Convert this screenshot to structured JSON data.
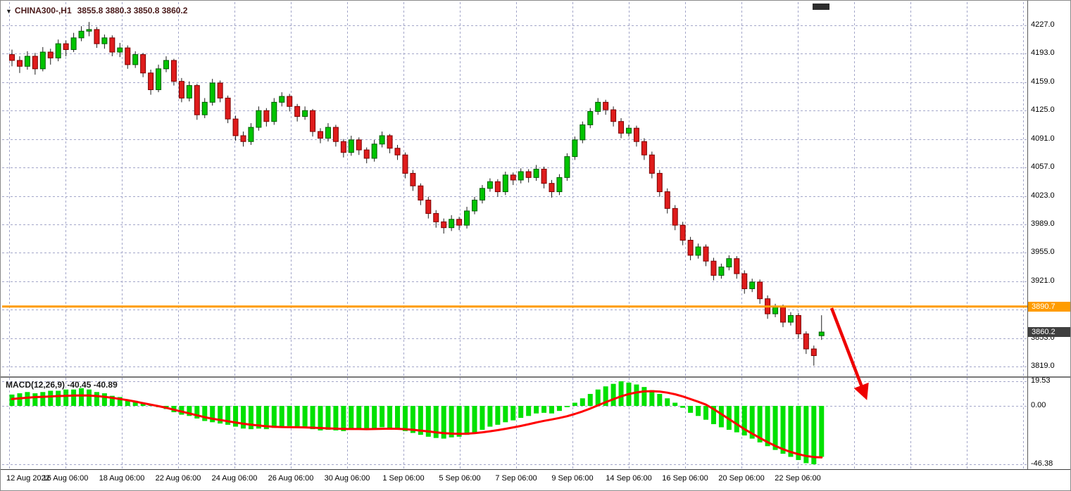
{
  "header": {
    "dropdown_icon": "▼",
    "symbol_period": "CHINA300-,H1",
    "ohlc": "3855.8 3880.3 3850.8 3860.2"
  },
  "badges": {
    "orange_line": "3890.7",
    "current_price": "3860.2"
  },
  "indicator": {
    "label": "MACD(12,26,9) -40.45 -40.89"
  },
  "price_axis": {
    "ticks": [
      "4227.0",
      "4193.0",
      "4159.0",
      "4125.0",
      "4091.0",
      "4057.0",
      "4023.0",
      "3989.0",
      "3955.0",
      "3921.0",
      "3887.0",
      "3853.0",
      "3819.0"
    ]
  },
  "macd_axis": {
    "ticks": [
      "19.53",
      "0.00",
      "-46.38"
    ]
  },
  "time_axis": {
    "labels": [
      "12 Aug 2022",
      "16 Aug 06:00",
      "18 Aug 06:00",
      "22 Aug 06:00",
      "24 Aug 06:00",
      "26 Aug 06:00",
      "30 Aug 06:00",
      "1 Sep 06:00",
      "5 Sep 06:00",
      "7 Sep 06:00",
      "9 Sep 06:00",
      "14 Sep 06:00",
      "16 Sep 06:00",
      "20 Sep 06:00",
      "22 Sep 06:00"
    ]
  },
  "colors": {
    "up": "#00c400",
    "down": "#df1c1c",
    "wick": "#1e1e1e",
    "histogram": "#00e100",
    "signal": "#ff0000",
    "grid": "#a3a6c9",
    "orange_line": "#ff9c00",
    "arrow": "#ee0000",
    "badge_dark": "#3f3f3f",
    "title_text": "#4a1a1a"
  },
  "chart_data": [
    {
      "type": "candlestick",
      "title": "CHINA300-,H1",
      "ohlc_current": {
        "open": 3855.8,
        "high": 3880.3,
        "low": 3850.8,
        "close": 3860.2
      },
      "ylim": [
        3810,
        4240
      ],
      "y_ticks": [
        4227.0,
        4193.0,
        4159.0,
        4125.0,
        4091.0,
        4057.0,
        4023.0,
        3989.0,
        3955.0,
        3921.0,
        3887.0,
        3853.0,
        3819.0
      ],
      "x_tick_labels": [
        "12 Aug 2022",
        "16 Aug 06:00",
        "18 Aug 06:00",
        "22 Aug 06:00",
        "24 Aug 06:00",
        "26 Aug 06:00",
        "30 Aug 06:00",
        "1 Sep 06:00",
        "5 Sep 06:00",
        "7 Sep 06:00",
        "9 Sep 06:00",
        "14 Sep 06:00",
        "16 Sep 06:00",
        "20 Sep 06:00",
        "22 Sep 06:00"
      ],
      "horizontal_line": 3890.7,
      "last_price": 3860.2,
      "candles": [
        [
          4192,
          4198,
          4178,
          4185
        ],
        [
          4185,
          4190,
          4170,
          4178
        ],
        [
          4178,
          4196,
          4174,
          4190
        ],
        [
          4190,
          4194,
          4168,
          4175
        ],
        [
          4175,
          4201,
          4172,
          4195
        ],
        [
          4195,
          4199,
          4180,
          4188
        ],
        [
          4188,
          4210,
          4184,
          4205
        ],
        [
          4205,
          4209,
          4190,
          4198
        ],
        [
          4198,
          4218,
          4195,
          4212
        ],
        [
          4212,
          4226,
          4208,
          4220
        ],
        [
          4220,
          4231,
          4214,
          4222
        ],
        [
          4222,
          4225,
          4200,
          4205
        ],
        [
          4205,
          4216,
          4199,
          4212
        ],
        [
          4212,
          4215,
          4190,
          4195
        ],
        [
          4195,
          4206,
          4189,
          4200
        ],
        [
          4200,
          4203,
          4175,
          4180
        ],
        [
          4180,
          4196,
          4176,
          4192
        ],
        [
          4192,
          4194,
          4165,
          4170
        ],
        [
          4170,
          4174,
          4144,
          4150
        ],
        [
          4150,
          4180,
          4147,
          4175
        ],
        [
          4175,
          4190,
          4171,
          4185
        ],
        [
          4185,
          4187,
          4155,
          4160
        ],
        [
          4160,
          4164,
          4135,
          4140
        ],
        [
          4140,
          4160,
          4136,
          4155
        ],
        [
          4155,
          4157,
          4114,
          4120
        ],
        [
          4120,
          4140,
          4116,
          4135
        ],
        [
          4135,
          4163,
          4131,
          4158
        ],
        [
          4158,
          4161,
          4135,
          4140
        ],
        [
          4140,
          4143,
          4110,
          4115
        ],
        [
          4115,
          4119,
          4089,
          4095
        ],
        [
          4095,
          4100,
          4082,
          4088
        ],
        [
          4088,
          4110,
          4084,
          4105
        ],
        [
          4105,
          4130,
          4101,
          4125
        ],
        [
          4125,
          4128,
          4106,
          4112
        ],
        [
          4112,
          4140,
          4108,
          4135
        ],
        [
          4135,
          4147,
          4130,
          4142
        ],
        [
          4142,
          4145,
          4124,
          4130
        ],
        [
          4130,
          4133,
          4112,
          4118
        ],
        [
          4118,
          4130,
          4114,
          4125
        ],
        [
          4125,
          4127,
          4094,
          4100
        ],
        [
          4100,
          4104,
          4086,
          4092
        ],
        [
          4092,
          4110,
          4088,
          4105
        ],
        [
          4105,
          4108,
          4082,
          4088
        ],
        [
          4088,
          4091,
          4069,
          4075
        ],
        [
          4075,
          4095,
          4071,
          4090
        ],
        [
          4090,
          4093,
          4072,
          4078
        ],
        [
          4078,
          4081,
          4062,
          4068
        ],
        [
          4068,
          4090,
          4064,
          4085
        ],
        [
          4085,
          4100,
          4081,
          4095
        ],
        [
          4095,
          4097,
          4074,
          4080
        ],
        [
          4080,
          4084,
          4066,
          4072
        ],
        [
          4072,
          4075,
          4044,
          4050
        ],
        [
          4050,
          4054,
          4029,
          4035
        ],
        [
          4035,
          4038,
          4012,
          4018
        ],
        [
          4018,
          4022,
          3996,
          4002
        ],
        [
          4002,
          4006,
          3985,
          3992
        ],
        [
          3992,
          3996,
          3978,
          3985
        ],
        [
          3985,
          4000,
          3981,
          3995
        ],
        [
          3995,
          3998,
          3982,
          3988
        ],
        [
          3988,
          4010,
          3984,
          4005
        ],
        [
          4005,
          4022,
          4001,
          4018
        ],
        [
          4018,
          4036,
          4014,
          4032
        ],
        [
          4032,
          4044,
          4028,
          4040
        ],
        [
          4040,
          4043,
          4022,
          4028
        ],
        [
          4028,
          4052,
          4024,
          4048
        ],
        [
          4048,
          4051,
          4036,
          4042
        ],
        [
          4042,
          4056,
          4038,
          4052
        ],
        [
          4052,
          4055,
          4039,
          4045
        ],
        [
          4045,
          4060,
          4041,
          4055
        ],
        [
          4055,
          4058,
          4032,
          4038
        ],
        [
          4038,
          4042,
          4021,
          4028
        ],
        [
          4028,
          4049,
          4024,
          4045
        ],
        [
          4045,
          4074,
          4041,
          4070
        ],
        [
          4070,
          4094,
          4066,
          4090
        ],
        [
          4090,
          4112,
          4086,
          4108
        ],
        [
          4108,
          4128,
          4104,
          4124
        ],
        [
          4124,
          4140,
          4120,
          4135
        ],
        [
          4135,
          4138,
          4120,
          4126
        ],
        [
          4126,
          4130,
          4106,
          4112
        ],
        [
          4112,
          4116,
          4092,
          4098
        ],
        [
          4098,
          4108,
          4094,
          4104
        ],
        [
          4104,
          4107,
          4082,
          4088
        ],
        [
          4088,
          4092,
          4066,
          4072
        ],
        [
          4072,
          4076,
          4044,
          4050
        ],
        [
          4050,
          4054,
          4022,
          4028
        ],
        [
          4028,
          4032,
          4002,
          4008
        ],
        [
          4008,
          4012,
          3982,
          3988
        ],
        [
          3988,
          3992,
          3964,
          3970
        ],
        [
          3970,
          3974,
          3946,
          3952
        ],
        [
          3952,
          3966,
          3948,
          3962
        ],
        [
          3962,
          3965,
          3939,
          3945
        ],
        [
          3945,
          3949,
          3922,
          3928
        ],
        [
          3928,
          3942,
          3924,
          3938
        ],
        [
          3938,
          3952,
          3934,
          3948
        ],
        [
          3948,
          3951,
          3924,
          3930
        ],
        [
          3930,
          3934,
          3906,
          3912
        ],
        [
          3912,
          3924,
          3908,
          3920
        ],
        [
          3920,
          3923,
          3894,
          3900
        ],
        [
          3900,
          3904,
          3876,
          3882
        ],
        [
          3882,
          3894,
          3878,
          3890
        ],
        [
          3890,
          3893,
          3866,
          3872
        ],
        [
          3872,
          3884,
          3868,
          3880
        ],
        [
          3880,
          3883,
          3852,
          3858
        ],
        [
          3858,
          3861,
          3834,
          3840
        ],
        [
          3840,
          3844,
          3820,
          3832
        ],
        [
          3855.8,
          3880.3,
          3850.8,
          3860.2
        ]
      ]
    },
    {
      "type": "bar+line",
      "title": "MACD(12,26,9)",
      "macd_value": -40.45,
      "signal_value": -40.89,
      "ylim": [
        -50,
        22
      ],
      "y_ticks": [
        19.53,
        0.0,
        -46.38
      ],
      "histogram": [
        9,
        10,
        11,
        10,
        11,
        12,
        12,
        13,
        13,
        14,
        13,
        11,
        10,
        8,
        7,
        5,
        4,
        2,
        0.5,
        -1,
        -2.5,
        -5,
        -7,
        -8,
        -10,
        -12,
        -13,
        -14,
        -15,
        -16.5,
        -18,
        -18.5,
        -18,
        -18.5,
        -17.5,
        -16.5,
        -16,
        -17,
        -17.5,
        -18.5,
        -19.5,
        -19,
        -19.5,
        -20,
        -19,
        -18.5,
        -19,
        -18,
        -17,
        -17.5,
        -18.5,
        -20,
        -21.5,
        -23,
        -24.5,
        -25.5,
        -26,
        -25,
        -24.5,
        -23,
        -21,
        -19,
        -16.5,
        -15,
        -13,
        -11.5,
        -9.5,
        -8,
        -6,
        -5.5,
        -6,
        -4,
        -1,
        2.5,
        6,
        9.5,
        13,
        15.5,
        17.5,
        19.53,
        18.5,
        17,
        15,
        12.5,
        9.5,
        6,
        2.5,
        -1.5,
        -5.5,
        -8,
        -11,
        -14.5,
        -17,
        -19,
        -21,
        -23.5,
        -26,
        -29,
        -32,
        -35,
        -38,
        -40.5,
        -43,
        -45.5,
        -46.38,
        -40.45
      ],
      "signal": [
        5.5,
        6,
        6.5,
        7,
        7.2,
        7.5,
        7.8,
        8,
        8.2,
        8.3,
        8.2,
        7.8,
        7.2,
        6.4,
        5.5,
        4.5,
        3.4,
        2.2,
        1,
        -0.2,
        -1.5,
        -3,
        -4.5,
        -6,
        -7.5,
        -9,
        -10.2,
        -11.2,
        -12.2,
        -13.2,
        -14.2,
        -15,
        -15.6,
        -16.2,
        -16.6,
        -16.8,
        -16.9,
        -17,
        -17.1,
        -17.3,
        -17.6,
        -17.9,
        -18.1,
        -18.3,
        -18.4,
        -18.4,
        -18.5,
        -18.4,
        -18.2,
        -18.1,
        -18.2,
        -18.5,
        -19,
        -19.6,
        -20.3,
        -21,
        -21.6,
        -22,
        -22.2,
        -22.1,
        -21.7,
        -21,
        -20.2,
        -19.3,
        -18.2,
        -17.1,
        -15.9,
        -14.6,
        -13.2,
        -11.9,
        -10.8,
        -9.6,
        -8.2,
        -6.4,
        -4.4,
        -2.1,
        0.4,
        2.9,
        5.3,
        7.6,
        9.4,
        10.7,
        11.5,
        11.7,
        11.4,
        10.5,
        9.2,
        7.5,
        5.4,
        3.3,
        1,
        -2.5,
        -6.5,
        -10.5,
        -14.5,
        -18.5,
        -22,
        -25.5,
        -28.8,
        -31.8,
        -34.4,
        -36.6,
        -38.4,
        -39.8,
        -40.6,
        -40.89
      ]
    }
  ]
}
